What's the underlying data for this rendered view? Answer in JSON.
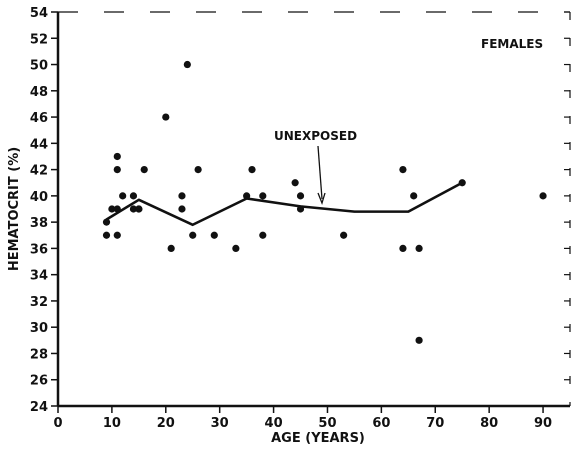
{
  "chart_data": {
    "type": "scatter",
    "legend_text": "FEMALES",
    "annotation": "UNEXPOSED",
    "xlabel": "AGE (YEARS)",
    "ylabel": "HEMATOCRIT (%)",
    "xlim": [
      0,
      95
    ],
    "ylim": [
      24,
      54
    ],
    "x_ticks": [
      "0",
      "10",
      "20",
      "30",
      "40",
      "50",
      "60",
      "70",
      "80",
      "90"
    ],
    "y_ticks": [
      "24",
      "26",
      "28",
      "30",
      "32",
      "34",
      "36",
      "38",
      "40",
      "42",
      "44",
      "46",
      "48",
      "50",
      "52",
      "54"
    ],
    "grid": false,
    "series": [
      {
        "kind": "points",
        "x": [
          9,
          9,
          10,
          11,
          11,
          11,
          11,
          12,
          14,
          14,
          15,
          15,
          16,
          20,
          21,
          23,
          23,
          24,
          25,
          26,
          29,
          33,
          35,
          36,
          38,
          38,
          44,
          45,
          45,
          53,
          64,
          64,
          66,
          67,
          67,
          75,
          90
        ],
        "y": [
          38,
          37,
          39,
          43,
          42,
          39,
          37,
          40,
          40,
          39,
          39,
          39,
          42,
          46,
          36,
          40,
          39,
          50,
          37,
          42,
          37,
          36,
          40,
          42,
          40,
          37,
          41,
          40,
          39,
          37,
          42,
          36,
          40,
          36,
          29,
          41,
          40
        ]
      },
      {
        "kind": "line",
        "x": [
          9,
          15,
          25,
          35,
          45,
          55,
          65,
          75
        ],
        "y": [
          38.2,
          39.7,
          37.8,
          39.8,
          39.2,
          38.8,
          38.8,
          41
        ]
      }
    ]
  }
}
